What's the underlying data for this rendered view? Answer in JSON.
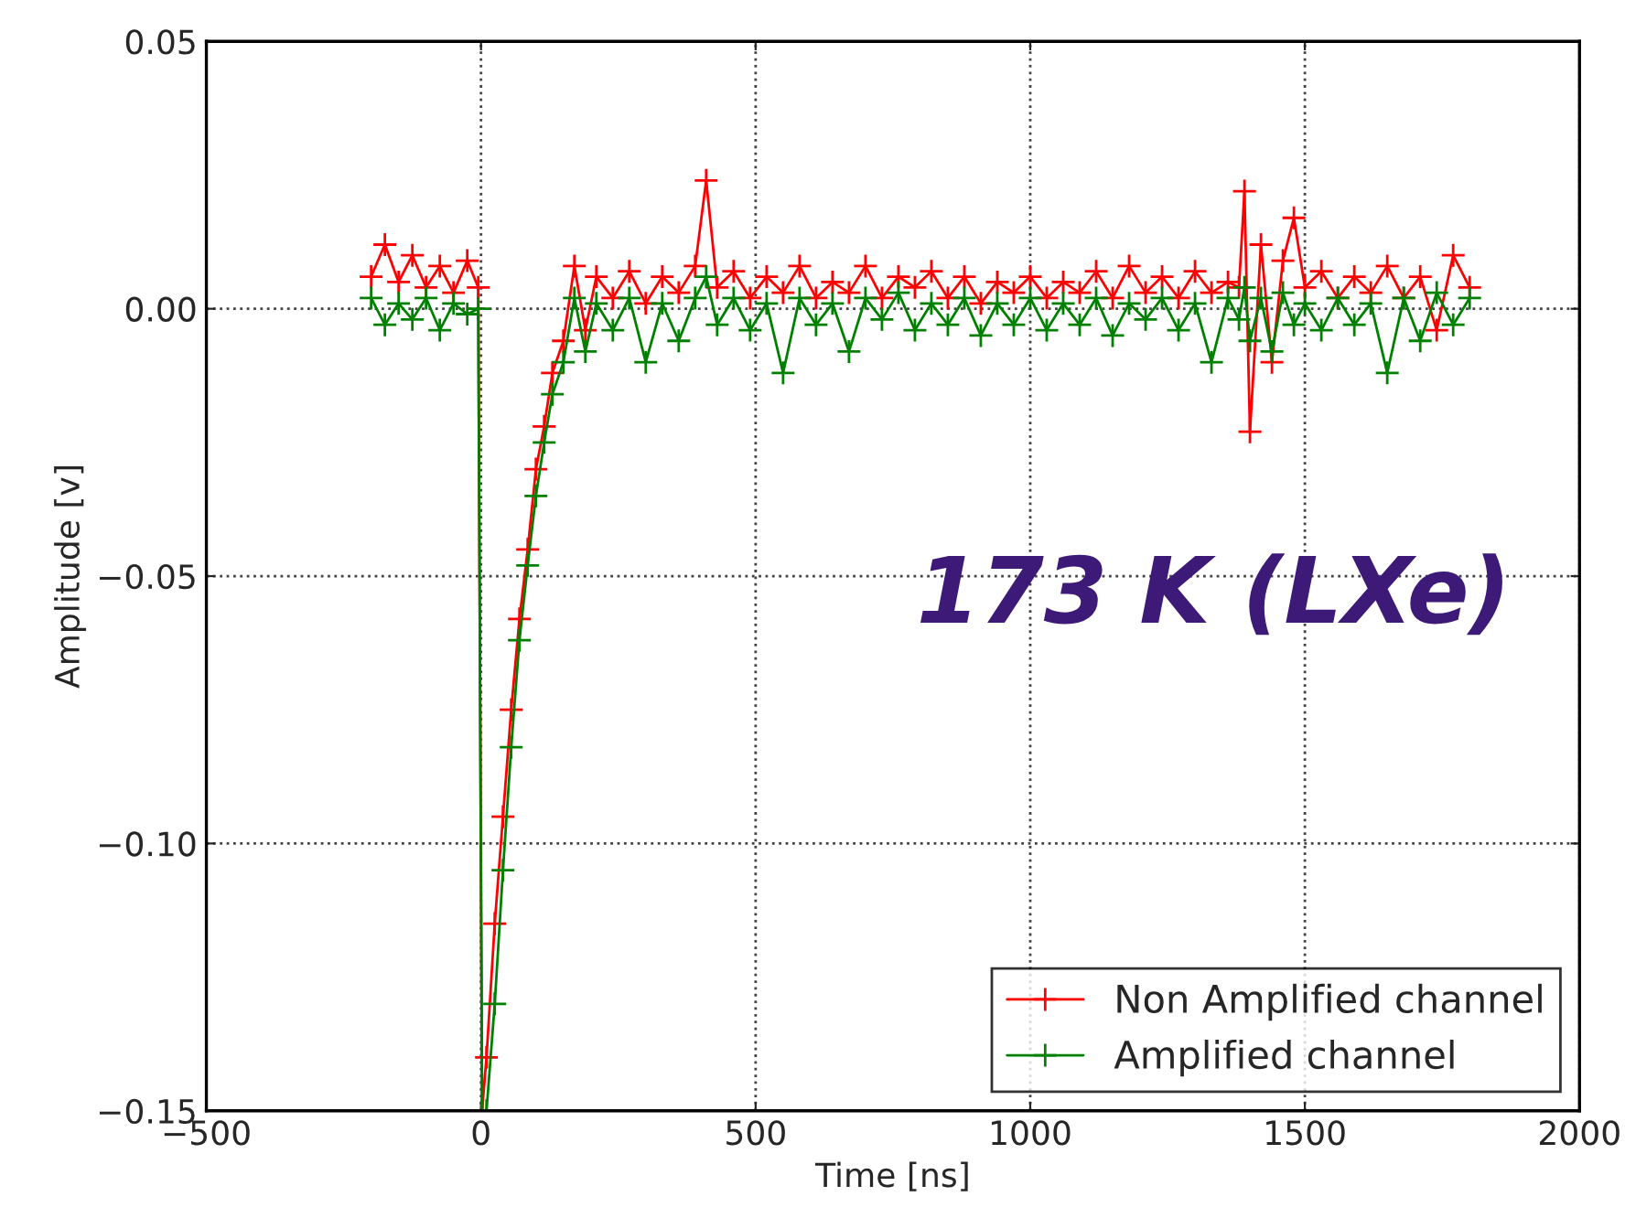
{
  "chart_data": {
    "type": "line",
    "xlabel": "Time [ns]",
    "ylabel": "Amplitude [v]",
    "x": [
      -200,
      -175,
      -150,
      -125,
      -100,
      -75,
      -50,
      -25,
      -5,
      2,
      10,
      25,
      40,
      55,
      70,
      85,
      100,
      115,
      130,
      150,
      170,
      190,
      210,
      240,
      270,
      300,
      330,
      360,
      390,
      410,
      430,
      460,
      490,
      520,
      550,
      580,
      610,
      640,
      670,
      700,
      730,
      760,
      790,
      820,
      850,
      880,
      910,
      940,
      970,
      1000,
      1030,
      1060,
      1090,
      1120,
      1150,
      1180,
      1210,
      1240,
      1270,
      1300,
      1330,
      1360,
      1380,
      1390,
      1400,
      1420,
      1440,
      1460,
      1480,
      1500,
      1530,
      1560,
      1590,
      1620,
      1650,
      1680,
      1710,
      1740,
      1770,
      1800
    ],
    "series": [
      {
        "name": "Non Amplified channel",
        "color": "#ff0000",
        "values": [
          0.006,
          0.012,
          0.005,
          0.01,
          0.004,
          0.008,
          0.003,
          0.009,
          0.004,
          -0.15,
          -0.14,
          -0.115,
          -0.095,
          -0.075,
          -0.058,
          -0.045,
          -0.03,
          -0.022,
          -0.012,
          -0.006,
          0.008,
          -0.004,
          0.006,
          0.002,
          0.007,
          0.001,
          0.006,
          0.003,
          0.008,
          0.024,
          0.004,
          0.007,
          0.002,
          0.006,
          0.003,
          0.008,
          0.002,
          0.005,
          0.003,
          0.008,
          0.002,
          0.006,
          0.004,
          0.007,
          0.002,
          0.006,
          0.001,
          0.005,
          0.003,
          0.006,
          0.002,
          0.005,
          0.003,
          0.007,
          0.002,
          0.008,
          0.003,
          0.006,
          0.002,
          0.007,
          0.003,
          0.005,
          0.004,
          0.022,
          -0.023,
          0.012,
          -0.01,
          0.009,
          0.017,
          0.004,
          0.007,
          0.002,
          0.006,
          0.003,
          0.008,
          0.002,
          0.006,
          -0.004,
          0.01,
          0.004
        ]
      },
      {
        "name": "Amplified channel",
        "color": "#008000",
        "values": [
          0.002,
          -0.003,
          0.001,
          -0.002,
          0.002,
          -0.004,
          0.001,
          -0.001,
          0.0,
          -0.15,
          -0.15,
          -0.13,
          -0.105,
          -0.082,
          -0.062,
          -0.048,
          -0.035,
          -0.025,
          -0.016,
          -0.01,
          0.002,
          -0.008,
          0.001,
          -0.004,
          0.002,
          -0.01,
          0.001,
          -0.006,
          0.002,
          0.006,
          -0.003,
          0.002,
          -0.004,
          0.001,
          -0.012,
          0.002,
          -0.003,
          0.001,
          -0.008,
          0.002,
          -0.002,
          0.003,
          -0.004,
          0.001,
          -0.003,
          0.002,
          -0.005,
          0.001,
          -0.003,
          0.002,
          -0.004,
          0.001,
          -0.003,
          0.002,
          -0.005,
          0.001,
          -0.002,
          0.002,
          -0.004,
          0.001,
          -0.01,
          0.002,
          -0.002,
          0.004,
          -0.006,
          0.002,
          -0.008,
          0.003,
          -0.003,
          0.001,
          -0.004,
          0.002,
          -0.003,
          0.001,
          -0.012,
          0.002,
          -0.006,
          0.003,
          -0.003,
          0.002
        ]
      }
    ],
    "xlim": [
      -500,
      2000
    ],
    "xticks": [
      {
        "value": -500,
        "label": "−500"
      },
      0,
      500,
      1000,
      1500,
      2000
    ],
    "ylim": [
      -0.15,
      0.05
    ],
    "yticks": [
      {
        "value": -0.15,
        "label": "−0.15"
      },
      {
        "value": -0.1,
        "label": "−0.10"
      },
      {
        "value": -0.05,
        "label": "−0.05"
      },
      {
        "value": 0,
        "label": "0.00"
      },
      {
        "value": 0.05,
        "label": "0.05"
      }
    ],
    "annotations": [
      "173 K (LXe)"
    ],
    "grid": true,
    "legend": "bottom right",
    "marker": "cross",
    "line_style": "solid"
  }
}
